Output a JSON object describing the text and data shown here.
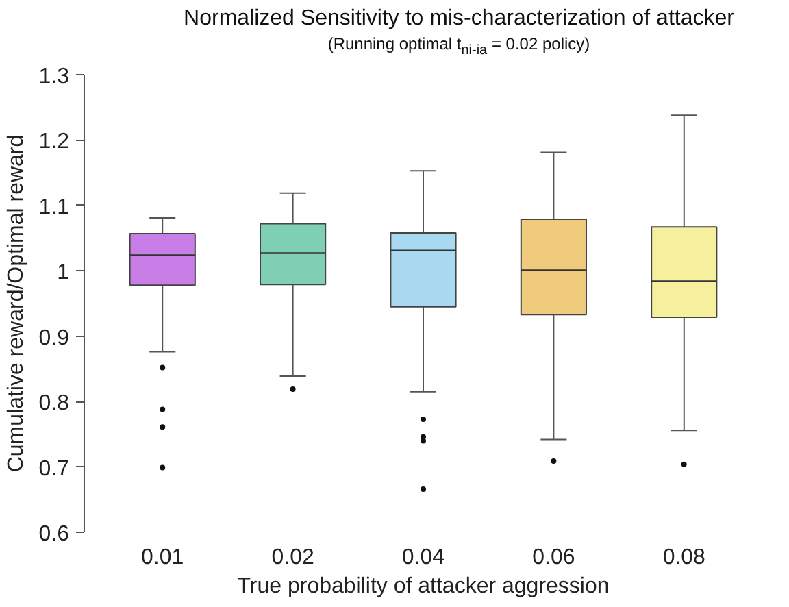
{
  "chart_data": {
    "type": "box",
    "title": "Normalized Sensitivity to mis-characterization of attacker",
    "subtitle": "(Running optimal t$_{ni-ia}$ = 0.02 policy)",
    "xlabel": "True probability of attacker aggression",
    "ylabel": "Cumulative reward/Optimal reward",
    "categories": [
      "0.01",
      "0.02",
      "0.04",
      "0.06",
      "0.08"
    ],
    "colors": [
      "#c97de6",
      "#7fcfb4",
      "#a9d9f0",
      "#f0cb7e",
      "#f6f09e"
    ],
    "boxes": [
      {
        "low": 0.876,
        "q1": 0.978,
        "median": 1.024,
        "q3": 1.057,
        "high": 1.081,
        "outliers": [
          0.852,
          0.788,
          0.761,
          0.699
        ]
      },
      {
        "low": 0.839,
        "q1": 0.979,
        "median": 1.027,
        "q3": 1.072,
        "high": 1.119,
        "outliers": [
          0.819
        ]
      },
      {
        "low": 0.815,
        "q1": 0.945,
        "median": 1.031,
        "q3": 1.058,
        "high": 1.153,
        "outliers": [
          0.773,
          0.746,
          0.74,
          0.666
        ]
      },
      {
        "low": 0.742,
        "q1": 0.933,
        "median": 1.001,
        "q3": 1.079,
        "high": 1.181,
        "outliers": [
          0.709
        ]
      },
      {
        "low": 0.756,
        "q1": 0.929,
        "median": 0.984,
        "q3": 1.067,
        "high": 1.238,
        "outliers": [
          0.704
        ]
      }
    ],
    "ylim": [
      0.6,
      1.3
    ],
    "yticks": [
      0.6,
      0.7,
      0.8,
      0.9,
      1,
      1.1,
      1.2,
      1.3
    ],
    "grid": false
  }
}
